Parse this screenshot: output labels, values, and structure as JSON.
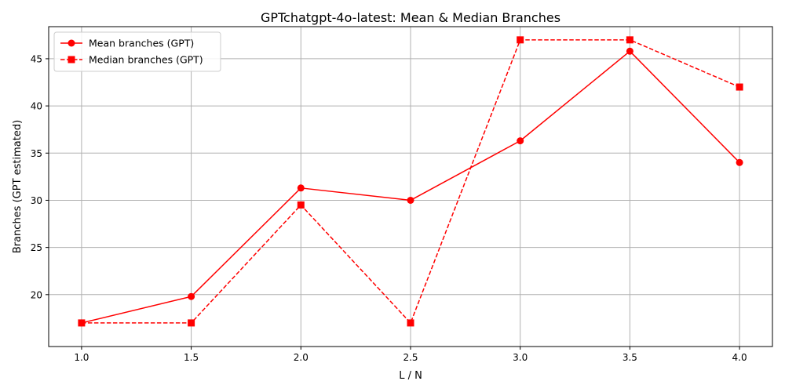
{
  "chart_data": {
    "type": "line",
    "title": "GPTchatgpt-4o-latest: Mean & Median Branches",
    "xlabel": "L / N",
    "ylabel": "Branches (GPT estimated)",
    "x": [
      1.0,
      1.5,
      2.0,
      2.5,
      3.0,
      3.5,
      4.0
    ],
    "xlim": [
      0.85,
      4.15
    ],
    "ylim": [
      14.5,
      48.4
    ],
    "xticks": [
      "1.0",
      "1.5",
      "2.0",
      "2.5",
      "3.0",
      "3.5",
      "4.0"
    ],
    "yticks": [
      "20",
      "25",
      "30",
      "35",
      "40",
      "45"
    ],
    "grid": true,
    "legend_position": "upper-left",
    "series": [
      {
        "name": "Mean branches (GPT)",
        "values": [
          17.0,
          19.8,
          31.3,
          30.0,
          36.3,
          45.8,
          34.0
        ],
        "color": "#ff0000",
        "line_style": "solid",
        "marker": "circle"
      },
      {
        "name": "Median branches (GPT)",
        "values": [
          17.0,
          17.0,
          29.5,
          17.0,
          47.0,
          47.0,
          42.0
        ],
        "color": "#ff0000",
        "line_style": "dashed",
        "marker": "square"
      }
    ]
  }
}
